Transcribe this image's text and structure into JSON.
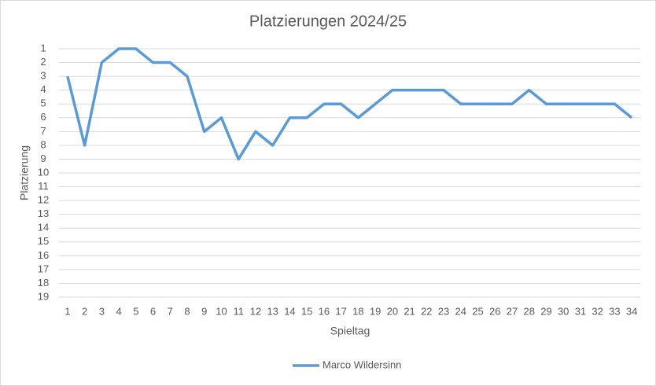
{
  "chart_data": {
    "type": "line",
    "title": "Platzierungen 2024/25",
    "x_label": "Spieltag",
    "y_label": "Platzierung",
    "categories": [
      "1",
      "2",
      "3",
      "4",
      "5",
      "6",
      "7",
      "8",
      "9",
      "10",
      "11",
      "12",
      "13",
      "14",
      "15",
      "16",
      "17",
      "18",
      "19",
      "20",
      "21",
      "22",
      "23",
      "24",
      "25",
      "26",
      "27",
      "28",
      "29",
      "30",
      "31",
      "32",
      "33",
      "34"
    ],
    "series": [
      {
        "name": "Marco Wildersinn",
        "color": "#5b9bd5",
        "values": [
          3,
          8,
          2,
          1,
          1,
          2,
          2,
          3,
          7,
          6,
          9,
          7,
          8,
          6,
          6,
          5,
          5,
          6,
          5,
          4,
          4,
          4,
          4,
          5,
          5,
          5,
          5,
          4,
          5,
          5,
          5,
          5,
          5,
          6
        ]
      }
    ],
    "ylim": [
      19,
      1
    ],
    "yticks": [
      1,
      2,
      3,
      4,
      5,
      6,
      7,
      8,
      9,
      10,
      11,
      12,
      13,
      14,
      15,
      16,
      17,
      18,
      19
    ],
    "grid": true,
    "legend": "bottom"
  }
}
